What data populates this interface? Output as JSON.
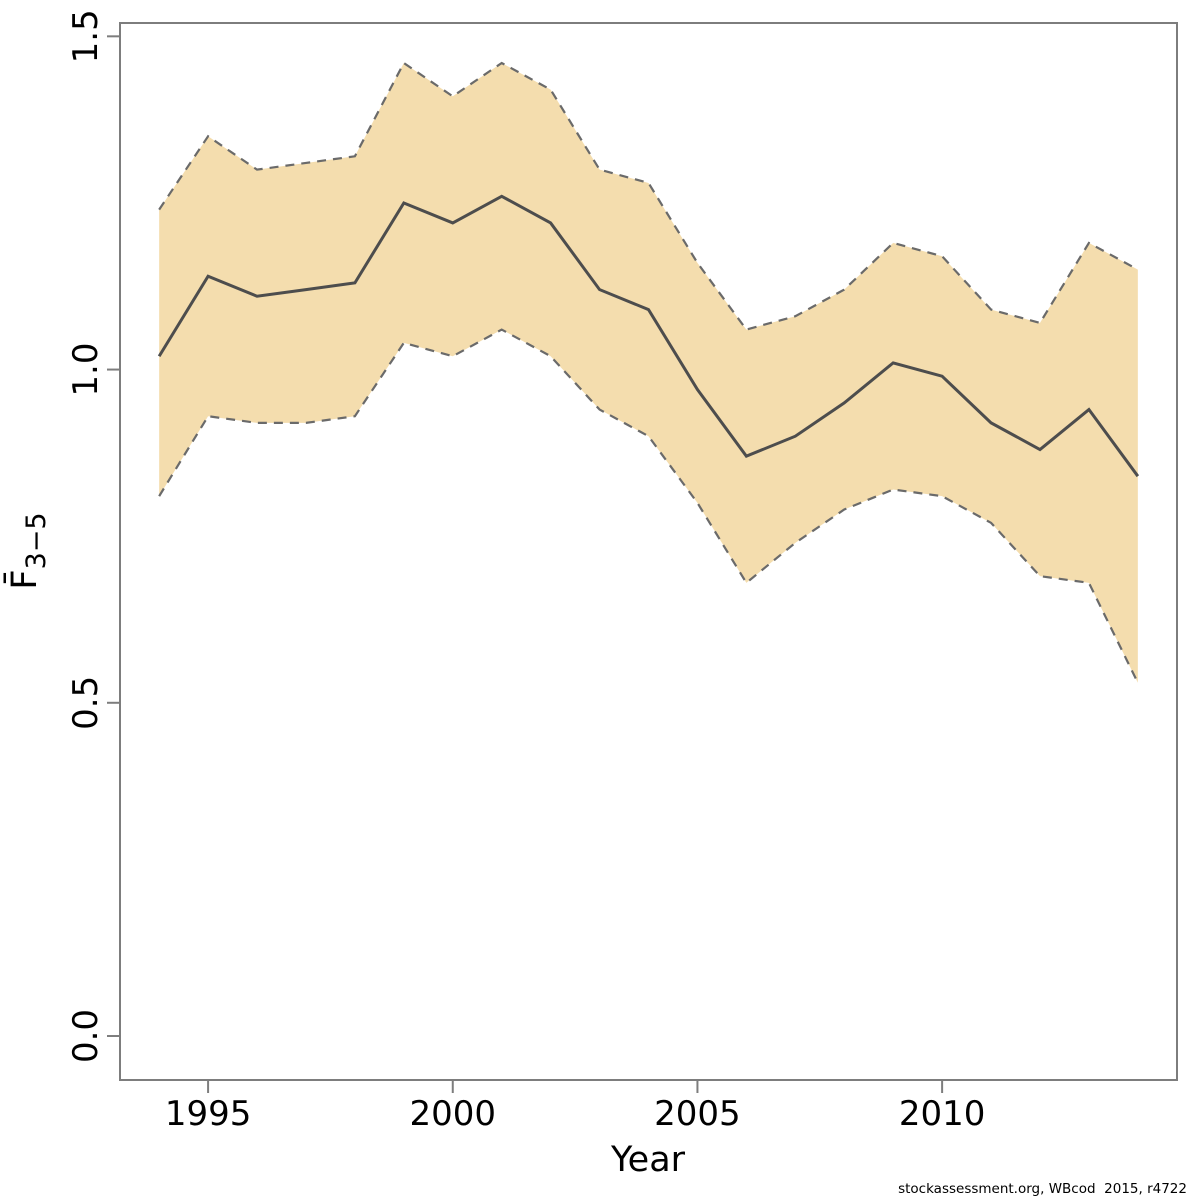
{
  "figure": {
    "footer": "stockassessment.org, WBcod  2015, r4722",
    "background": "#ffffff"
  },
  "chart_data": {
    "type": "line",
    "title": "",
    "xlabel": "Year",
    "ylabel": "F̄3−5",
    "ylabel_main": "F̄",
    "ylabel_sub": "3−5",
    "x": [
      1994,
      1995,
      1996,
      1997,
      1998,
      1999,
      2000,
      2001,
      2002,
      2003,
      2004,
      2005,
      2006,
      2007,
      2008,
      2009,
      2010,
      2011,
      2012,
      2013,
      2014
    ],
    "series": [
      {
        "name": "F estimate",
        "role": "estimate",
        "style": "solid",
        "color": "#4d4d4d",
        "values": [
          1.02,
          1.14,
          1.11,
          1.12,
          1.13,
          1.25,
          1.22,
          1.26,
          1.22,
          1.12,
          1.09,
          0.97,
          0.87,
          0.9,
          0.95,
          1.01,
          0.99,
          0.92,
          0.88,
          0.94,
          0.84
        ]
      },
      {
        "name": "95% CI upper",
        "role": "ci-upper",
        "style": "dashed",
        "color": "#6a6a6a",
        "values": [
          1.24,
          1.35,
          1.3,
          1.31,
          1.32,
          1.46,
          1.41,
          1.46,
          1.42,
          1.3,
          1.28,
          1.16,
          1.06,
          1.08,
          1.12,
          1.19,
          1.17,
          1.09,
          1.07,
          1.19,
          1.15
        ]
      },
      {
        "name": "95% CI lower",
        "role": "ci-lower",
        "style": "dashed",
        "color": "#6a6a6a",
        "values": [
          0.81,
          0.93,
          0.92,
          0.92,
          0.93,
          1.04,
          1.02,
          1.06,
          1.02,
          0.94,
          0.9,
          0.8,
          0.68,
          0.74,
          0.79,
          0.82,
          0.81,
          0.77,
          0.69,
          0.68,
          0.53
        ]
      }
    ],
    "band_fill": "#f4ddae",
    "axis_color": "#7d7d7d",
    "text_color": "#000000",
    "xticks": [
      1995,
      2000,
      2005,
      2010
    ],
    "xtick_labels": [
      "1995",
      "2000",
      "2005",
      "2010"
    ],
    "yticks": [
      0.0,
      0.5,
      1.0,
      1.5
    ],
    "ytick_labels": [
      "0.0",
      "0.5",
      "1.0",
      "1.5"
    ],
    "xlim": [
      1993.2,
      2014.8
    ],
    "ylim": [
      -0.066,
      1.52
    ],
    "grid": false,
    "legend": "none"
  }
}
